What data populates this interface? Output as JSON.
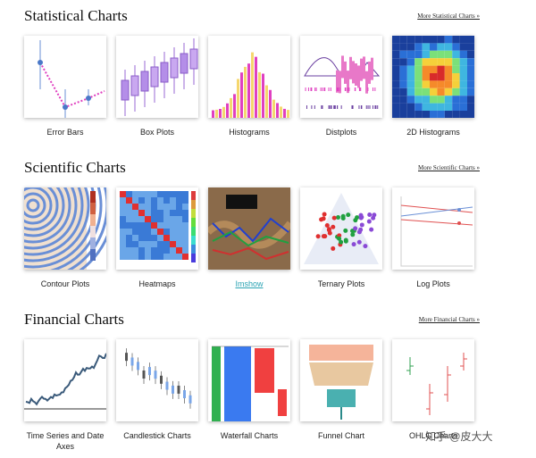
{
  "sections": [
    {
      "title": "Statistical Charts",
      "more_link": "More Statistical Charts »",
      "items": [
        {
          "label": "Error Bars"
        },
        {
          "label": "Box Plots"
        },
        {
          "label": "Histograms"
        },
        {
          "label": "Distplots"
        },
        {
          "label": "2D Histograms"
        }
      ]
    },
    {
      "title": "Scientific Charts",
      "more_link": "More Scientific Charts »",
      "items": [
        {
          "label": "Contour Plots"
        },
        {
          "label": "Heatmaps"
        },
        {
          "label": "Imshow"
        },
        {
          "label": "Ternary Plots"
        },
        {
          "label": "Log Plots"
        }
      ]
    },
    {
      "title": "Financial Charts",
      "more_link": "More Financial Charts »",
      "items": [
        {
          "label": "Time Series and Date Axes"
        },
        {
          "label": "Candlestick Charts"
        },
        {
          "label": "Waterfall Charts"
        },
        {
          "label": "Funnel Chart"
        },
        {
          "label": "OHLC Charts"
        }
      ]
    }
  ],
  "watermark": "知乎 @皮大大"
}
